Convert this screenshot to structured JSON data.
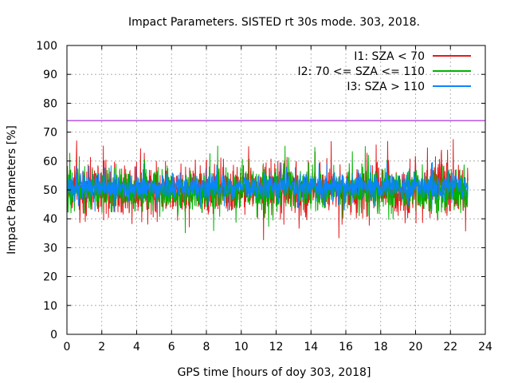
{
  "chart_data": {
    "type": "line",
    "title": "Impact Parameters. SISTED rt 30s mode. 303, 2018.",
    "xlabel": "GPS time [hours of doy 303, 2018]",
    "ylabel": "Impact Parameters [%]",
    "xlim": [
      0,
      24
    ],
    "ylim": [
      0,
      100
    ],
    "xticks": [
      0,
      2,
      4,
      6,
      8,
      10,
      12,
      14,
      16,
      18,
      20,
      22,
      24
    ],
    "yticks": [
      0,
      10,
      20,
      30,
      40,
      50,
      60,
      70,
      80,
      90,
      100
    ],
    "grid": true,
    "legend_position": "top-right",
    "reference_line": {
      "y": 74,
      "color": "#9400d3"
    },
    "series": [
      {
        "name": "I1: SZA < 70",
        "color": "#e41a1c",
        "x_range": [
          0,
          23
        ],
        "center": 50,
        "spread": 8,
        "min": 32,
        "max": 68
      },
      {
        "name": "I2: 70 <= SZA <= 110",
        "color": "#00b200",
        "x_range": [
          0,
          23
        ],
        "center": 50,
        "spread": 7,
        "min": 35,
        "max": 66
      },
      {
        "name": "I3: SZA > 110",
        "color": "#0a84ff",
        "x_range": [
          0,
          23
        ],
        "center": 51,
        "spread": 4,
        "min": 36,
        "max": 64
      }
    ]
  }
}
